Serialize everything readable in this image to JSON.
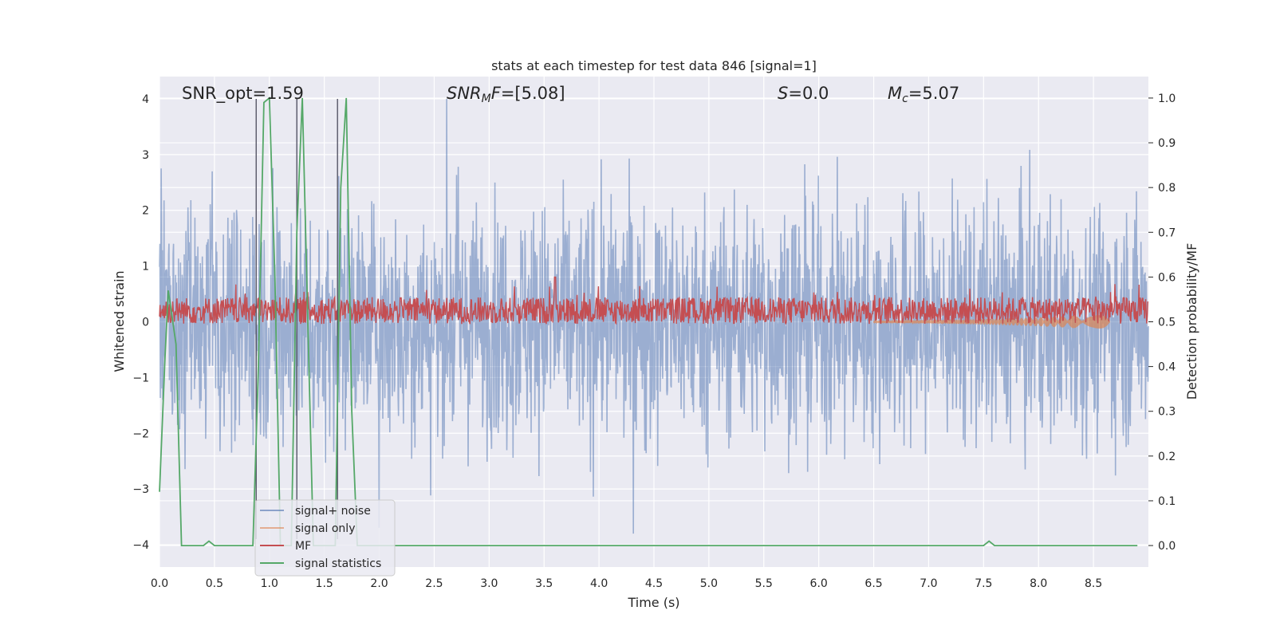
{
  "chart_data": {
    "type": "line",
    "title": "stats at each timestep for test data 846 [signal=1]",
    "xlabel": "Time (s)",
    "ylabel": "Whitened strain",
    "y2label": "Detection probability/MF",
    "xlim": [
      0.0,
      9.0
    ],
    "ylim": [
      -4.4,
      4.4
    ],
    "y2lim": [
      -0.048,
      1.048
    ],
    "xticks": [
      "0.0",
      "0.5",
      "1.0",
      "1.5",
      "2.0",
      "2.5",
      "3.0",
      "3.5",
      "4.0",
      "4.5",
      "5.0",
      "5.5",
      "6.0",
      "6.5",
      "7.0",
      "7.5",
      "8.0",
      "8.5"
    ],
    "xtick_values": [
      0.0,
      0.5,
      1.0,
      1.5,
      2.0,
      2.5,
      3.0,
      3.5,
      4.0,
      4.5,
      5.0,
      5.5,
      6.0,
      6.5,
      7.0,
      7.5,
      8.0,
      8.5
    ],
    "yticks": [
      "−4",
      "−3",
      "−2",
      "−1",
      "0",
      "1",
      "2",
      "3",
      "4"
    ],
    "ytick_values": [
      -4,
      -3,
      -2,
      -1,
      0,
      1,
      2,
      3,
      4
    ],
    "y2ticks": [
      "0.0",
      "0.1",
      "0.2",
      "0.3",
      "0.4",
      "0.5",
      "0.6",
      "0.7",
      "0.8",
      "0.9",
      "1.0"
    ],
    "y2tick_values": [
      0.0,
      0.1,
      0.2,
      0.3,
      0.4,
      0.5,
      0.6,
      0.7,
      0.8,
      0.9,
      1.0
    ],
    "grid": true,
    "legend_position": "lower-left",
    "annotations": [
      {
        "label": "SNR_opt=1.59"
      },
      {
        "label": "SNR_MF=[5.08]"
      },
      {
        "label": "S=0.0"
      },
      {
        "label": "M_c=5.07"
      }
    ],
    "vertical_lines_x": [
      0.88,
      1.25,
      1.62
    ],
    "series": [
      {
        "name": "signal+ noise",
        "color": "#4c72b0",
        "axis": "left",
        "description_range": [
          -3.8,
          4.0
        ]
      },
      {
        "name": "signal only",
        "color": "#dd8452",
        "axis": "left",
        "envelope": {
          "x": [
            6.5,
            7.0,
            7.5,
            8.0,
            8.5,
            8.65
          ],
          "amp": [
            0.02,
            0.03,
            0.05,
            0.08,
            0.13,
            0.2
          ]
        }
      },
      {
        "name": "MF",
        "color": "#c44e52",
        "axis": "right",
        "baseline": 0.525,
        "peak": {
          "x": 3.6,
          "y": 0.6
        }
      },
      {
        "name": "signal statistics",
        "color": "#55a868",
        "axis": "right",
        "x": [
          0.0,
          0.05,
          0.08,
          0.15,
          0.2,
          0.25,
          0.3,
          0.4,
          0.45,
          0.5,
          0.55,
          0.6,
          0.7,
          0.8,
          0.85,
          0.9,
          0.95,
          1.0,
          1.05,
          1.1,
          1.15,
          1.2,
          1.25,
          1.3,
          1.35,
          1.4,
          1.45,
          1.5,
          1.55,
          1.6,
          1.65,
          1.7,
          1.75,
          1.8,
          1.9,
          2.0,
          3.0,
          4.0,
          5.0,
          6.0,
          7.0,
          7.5,
          7.55,
          7.6,
          7.65,
          8.0,
          8.5,
          8.9
        ],
        "y": [
          0.12,
          0.42,
          0.57,
          0.45,
          0.0,
          0.0,
          0.0,
          0.0,
          0.01,
          0.0,
          0.0,
          0.0,
          0.0,
          0.0,
          0.0,
          0.4,
          0.99,
          1.0,
          0.6,
          0.0,
          0.0,
          0.0,
          0.7,
          1.0,
          0.5,
          0.0,
          0.0,
          0.0,
          0.0,
          0.0,
          0.8,
          1.0,
          0.3,
          0.0,
          0.0,
          0.0,
          0.0,
          0.0,
          0.0,
          0.0,
          0.0,
          0.0,
          0.01,
          0.0,
          0.0,
          0.0,
          0.0,
          0.0
        ]
      }
    ]
  }
}
